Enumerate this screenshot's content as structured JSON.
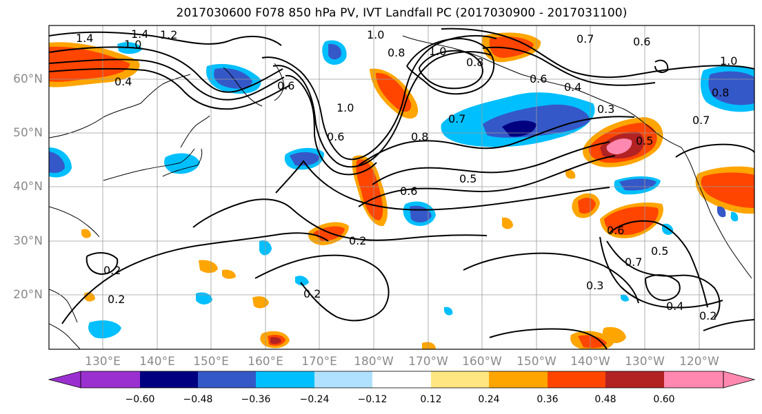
{
  "title": "2017030600 F078 850 hPa PV, IVT Landfall PC (2017030900 - 2017031100)",
  "lat_labels": [
    "60°N",
    "50°N",
    "40°N",
    "30°N",
    "20°N"
  ],
  "lon_labels": [
    "130°E",
    "140°E",
    "150°E",
    "160°E",
    "170°E",
    "180°W",
    "170°W",
    "160°W",
    "150°W",
    "140°W",
    "130°W",
    "120°W"
  ],
  "colorbar": {
    "ticks": [
      "−0.60",
      "−0.48",
      "−0.36",
      "−0.24",
      "−0.12",
      "0.12",
      "0.24",
      "0.36",
      "0.48",
      "0.60"
    ],
    "colors": [
      "#9b30d0",
      "#000080",
      "#3558c8",
      "#00bfff",
      "#b0e2ff",
      "#ffffff",
      "#ffe680",
      "#ffa500",
      "#ff4500",
      "#b22222",
      "#ff88b0"
    ]
  },
  "contour_labels": [
    "1.4",
    "1.4",
    "1.2",
    "1.0",
    "0.4",
    "1.0",
    "0.8",
    "1.0",
    "0.6",
    "1.0",
    "0.8",
    "0.7",
    "0.6",
    "0.8",
    "0.5",
    "0.6",
    "0.2",
    "0.2",
    "0.2",
    "0.2",
    "0.7",
    "0.6",
    "0.4",
    "0.3",
    "0.5",
    "0.6",
    "0.7",
    "0.5",
    "0.3",
    "0.4",
    "0.2",
    "0.6",
    "0.8",
    "0.7",
    "1.0"
  ]
}
